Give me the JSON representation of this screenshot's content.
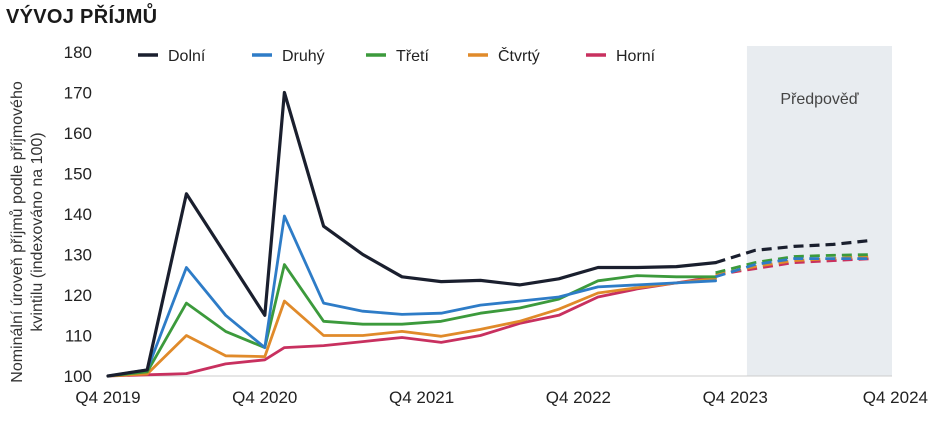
{
  "chart_data": {
    "type": "line",
    "title": "VÝVOJ PŘÍJMŮ",
    "ylabel": "Nominální úroveň příjmů podle příjmového kvintilu (indexováno na 100)",
    "ylabel_lines": [
      "Nominální úroveň příjmů podle příjmového",
      "kvintilu (indexováno na 100)"
    ],
    "xlabel": "",
    "ylim": [
      100,
      180
    ],
    "yticks": [
      100,
      110,
      120,
      130,
      140,
      150,
      160,
      170,
      180
    ],
    "xlim": [
      0,
      20
    ],
    "xticks": [
      {
        "x": 0,
        "label": "Q4 2019"
      },
      {
        "x": 4,
        "label": "Q4 2020"
      },
      {
        "x": 8,
        "label": "Q4 2021"
      },
      {
        "x": 12,
        "label": "Q4 2022"
      },
      {
        "x": 16,
        "label": "Q4 2023"
      },
      {
        "x": 20,
        "label": "Q4 2024"
      }
    ],
    "forecast": {
      "label": "Předpověď",
      "start": 16.3,
      "end": 20,
      "color": "#e8ecf0"
    },
    "legend_position": "top",
    "grid": false,
    "series": [
      {
        "name": "Dolní",
        "color": "#1a1f2e",
        "actual": [
          [
            0,
            100
          ],
          [
            1,
            101.5
          ],
          [
            2,
            145
          ],
          [
            3,
            130
          ],
          [
            4,
            115
          ],
          [
            4.5,
            170
          ],
          [
            5.5,
            137
          ],
          [
            6.5,
            130
          ],
          [
            7.5,
            124.5
          ],
          [
            8.5,
            123.3
          ],
          [
            9.5,
            123.6
          ],
          [
            10.5,
            122.5
          ],
          [
            11.5,
            124
          ],
          [
            12.5,
            126.8
          ],
          [
            13.5,
            126.8
          ],
          [
            14.5,
            127
          ],
          [
            15.5,
            128
          ]
        ],
        "forecast": [
          [
            15.5,
            128
          ],
          [
            16.5,
            131
          ],
          [
            17.5,
            132
          ],
          [
            18.5,
            132.5
          ],
          [
            19.5,
            133.5
          ]
        ]
      },
      {
        "name": "Druhý",
        "color": "#2e7cc7",
        "actual": [
          [
            0,
            100
          ],
          [
            1,
            101.5
          ],
          [
            2,
            126.8
          ],
          [
            3,
            115
          ],
          [
            4,
            107
          ],
          [
            4.5,
            139.5
          ],
          [
            5.5,
            118
          ],
          [
            6.5,
            116
          ],
          [
            7.5,
            115.2
          ],
          [
            8.5,
            115.5
          ],
          [
            9.5,
            117.5
          ],
          [
            10.5,
            118.5
          ],
          [
            11.5,
            119.5
          ],
          [
            12.5,
            122
          ],
          [
            13.5,
            122.5
          ],
          [
            14.5,
            123
          ],
          [
            15.5,
            123.5
          ]
        ],
        "forecast": [
          [
            15.5,
            124.5
          ],
          [
            16.5,
            127.5
          ],
          [
            17.5,
            129
          ],
          [
            18.5,
            129
          ],
          [
            19.5,
            129
          ]
        ]
      },
      {
        "name": "Třetí",
        "color": "#3c9a3c",
        "actual": [
          [
            0,
            100
          ],
          [
            1,
            101
          ],
          [
            2,
            118
          ],
          [
            3,
            111
          ],
          [
            4,
            107
          ],
          [
            4.5,
            127.5
          ],
          [
            5.5,
            113.5
          ],
          [
            6.5,
            112.8
          ],
          [
            7.5,
            112.8
          ],
          [
            8.5,
            113.5
          ],
          [
            9.5,
            115.5
          ],
          [
            10.5,
            116.8
          ],
          [
            11.5,
            119
          ],
          [
            12.5,
            123.5
          ],
          [
            13.5,
            124.8
          ],
          [
            14.5,
            124.5
          ],
          [
            15.5,
            124.5
          ]
        ],
        "forecast": [
          [
            15.5,
            125.5
          ],
          [
            16.5,
            128
          ],
          [
            17.5,
            129.5
          ],
          [
            18.5,
            129.8
          ],
          [
            19.5,
            130
          ]
        ]
      },
      {
        "name": "Čtvrtý",
        "color": "#e08a2a",
        "actual": [
          [
            0,
            100
          ],
          [
            1,
            100.5
          ],
          [
            2,
            110
          ],
          [
            3,
            105
          ],
          [
            4,
            104.8
          ],
          [
            4.5,
            118.5
          ],
          [
            5.5,
            110
          ],
          [
            6.5,
            110
          ],
          [
            7.5,
            111
          ],
          [
            8.5,
            109.8
          ],
          [
            9.5,
            111.5
          ],
          [
            10.5,
            113.5
          ],
          [
            11.5,
            116.5
          ],
          [
            12.5,
            120.5
          ],
          [
            13.5,
            121.8
          ],
          [
            14.5,
            123
          ],
          [
            15.5,
            124
          ]
        ],
        "forecast": [
          [
            15.5,
            125
          ],
          [
            16.5,
            127
          ],
          [
            17.5,
            128.5
          ],
          [
            18.5,
            129
          ],
          [
            19.5,
            129.5
          ]
        ]
      },
      {
        "name": "Horní",
        "color": "#c8305f",
        "actual": [
          [
            0,
            100
          ],
          [
            1,
            100.3
          ],
          [
            2,
            100.6
          ],
          [
            3,
            103
          ],
          [
            4,
            104
          ],
          [
            4.5,
            107
          ],
          [
            5.5,
            107.5
          ],
          [
            6.5,
            108.5
          ],
          [
            7.5,
            109.5
          ],
          [
            8.5,
            108.3
          ],
          [
            9.5,
            110
          ],
          [
            10.5,
            113
          ],
          [
            11.5,
            115
          ],
          [
            12.5,
            119.5
          ],
          [
            13.5,
            121.5
          ],
          [
            14.5,
            123
          ],
          [
            15.5,
            124.5
          ]
        ],
        "forecast": [
          [
            15.5,
            125
          ],
          [
            16.5,
            126.5
          ],
          [
            17.5,
            128
          ],
          [
            18.5,
            128.5
          ],
          [
            19.5,
            129
          ]
        ]
      }
    ]
  }
}
